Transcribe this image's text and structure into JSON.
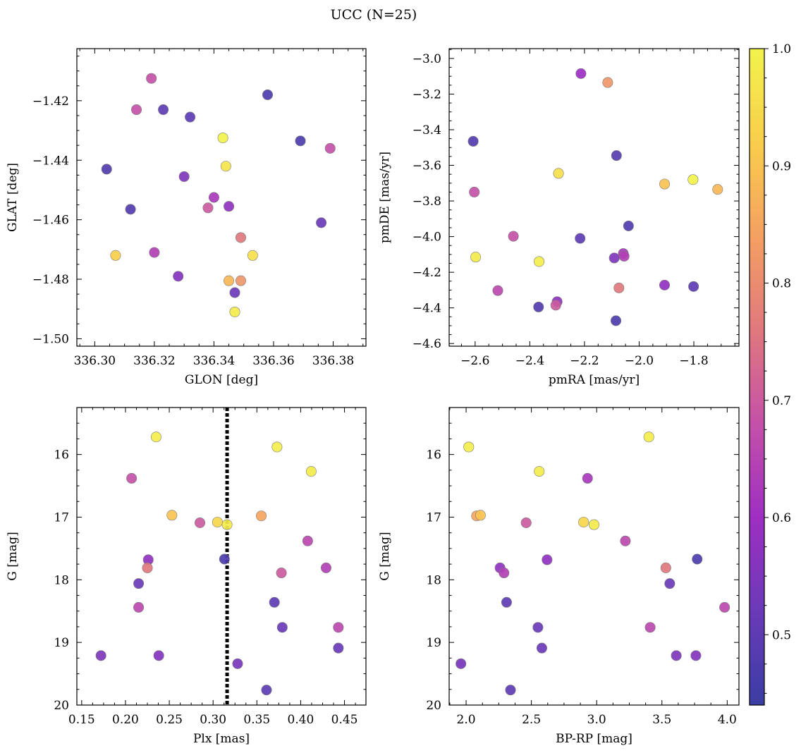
{
  "figure": {
    "title": "UCC (N=25)"
  },
  "colormap": {
    "name": "plasma",
    "range": [
      0.44,
      1.0
    ],
    "stops": [
      "#3a3ea3",
      "#6a3ab8",
      "#9e2fc2",
      "#c451a8",
      "#e0787e",
      "#f4a062",
      "#f9ce4c",
      "#f2f34c"
    ],
    "ticks": [
      "0.5",
      "0.6",
      "0.7",
      "0.8",
      "0.9",
      "1.0"
    ]
  },
  "chart_data": [
    {
      "type": "scatter",
      "xlabel": "GLON [deg]",
      "ylabel": "GLAT [deg]",
      "xlim": [
        336.294,
        336.391
      ],
      "ylim": [
        -1.5025,
        -1.4025
      ],
      "xticks": [
        "336.30",
        "336.32",
        "336.34",
        "336.36",
        "336.38"
      ],
      "yticks": [
        "−1.42",
        "−1.44",
        "−1.46",
        "−1.48",
        "−1.50"
      ],
      "points": [
        {
          "x": 336.319,
          "y": -1.4125,
          "c": 0.68
        },
        {
          "x": 336.358,
          "y": -1.418,
          "c": 0.47
        },
        {
          "x": 336.314,
          "y": -1.423,
          "c": 0.68
        },
        {
          "x": 336.323,
          "y": -1.423,
          "c": 0.5
        },
        {
          "x": 336.332,
          "y": -1.4255,
          "c": 0.5
        },
        {
          "x": 336.343,
          "y": -1.4325,
          "c": 1.0
        },
        {
          "x": 336.369,
          "y": -1.4335,
          "c": 0.47
        },
        {
          "x": 336.379,
          "y": -1.436,
          "c": 0.68
        },
        {
          "x": 336.344,
          "y": -1.442,
          "c": 0.97
        },
        {
          "x": 336.304,
          "y": -1.443,
          "c": 0.48
        },
        {
          "x": 336.33,
          "y": -1.4455,
          "c": 0.55
        },
        {
          "x": 336.34,
          "y": -1.4525,
          "c": 0.62
        },
        {
          "x": 336.345,
          "y": -1.4555,
          "c": 0.58
        },
        {
          "x": 336.338,
          "y": -1.456,
          "c": 0.7
        },
        {
          "x": 336.312,
          "y": -1.4565,
          "c": 0.48
        },
        {
          "x": 336.376,
          "y": -1.461,
          "c": 0.52
        },
        {
          "x": 336.349,
          "y": -1.466,
          "c": 0.76
        },
        {
          "x": 336.32,
          "y": -1.471,
          "c": 0.64
        },
        {
          "x": 336.307,
          "y": -1.472,
          "c": 0.92
        },
        {
          "x": 336.353,
          "y": -1.472,
          "c": 0.96
        },
        {
          "x": 336.328,
          "y": -1.479,
          "c": 0.56
        },
        {
          "x": 336.345,
          "y": -1.4805,
          "c": 0.88
        },
        {
          "x": 336.349,
          "y": -1.4805,
          "c": 0.82
        },
        {
          "x": 336.347,
          "y": -1.4845,
          "c": 0.52
        },
        {
          "x": 336.347,
          "y": -1.491,
          "c": 0.98
        }
      ]
    },
    {
      "type": "scatter",
      "xlabel": "pmRA [mas/yr]",
      "ylabel": "pmDE [mas/yr]",
      "xlim": [
        -2.695,
        -1.635
      ],
      "ylim": [
        -4.615,
        -2.945
      ],
      "xticks": [
        "−2.6",
        "−2.4",
        "−2.2",
        "−2.0",
        "−1.8"
      ],
      "yticks": [
        "−3.0",
        "−3.2",
        "−3.4",
        "−3.6",
        "−3.8",
        "−4.0",
        "−4.2",
        "−4.4",
        "−4.6"
      ],
      "points": [
        {
          "x": -2.213,
          "y": -3.085,
          "c": 0.6
        },
        {
          "x": -2.115,
          "y": -3.135,
          "c": 0.82
        },
        {
          "x": -2.607,
          "y": -3.465,
          "c": 0.48
        },
        {
          "x": -2.083,
          "y": -3.545,
          "c": 0.49
        },
        {
          "x": -2.295,
          "y": -3.645,
          "c": 0.96
        },
        {
          "x": -1.907,
          "y": -3.705,
          "c": 0.9
        },
        {
          "x": -1.803,
          "y": -3.68,
          "c": 1.0
        },
        {
          "x": -1.713,
          "y": -3.735,
          "c": 0.88
        },
        {
          "x": -2.603,
          "y": -3.75,
          "c": 0.68
        },
        {
          "x": -2.039,
          "y": -3.94,
          "c": 0.48
        },
        {
          "x": -2.46,
          "y": -3.998,
          "c": 0.68
        },
        {
          "x": -2.216,
          "y": -4.01,
          "c": 0.5
        },
        {
          "x": -2.058,
          "y": -4.095,
          "c": 0.62
        },
        {
          "x": -2.055,
          "y": -4.11,
          "c": 0.64
        },
        {
          "x": -2.091,
          "y": -4.12,
          "c": 0.55
        },
        {
          "x": -2.598,
          "y": -4.115,
          "c": 0.98
        },
        {
          "x": -2.366,
          "y": -4.14,
          "c": 0.99
        },
        {
          "x": -2.074,
          "y": -4.288,
          "c": 0.76
        },
        {
          "x": -1.907,
          "y": -4.272,
          "c": 0.58
        },
        {
          "x": -1.801,
          "y": -4.28,
          "c": 0.5
        },
        {
          "x": -2.517,
          "y": -4.303,
          "c": 0.66
        },
        {
          "x": -2.3,
          "y": -4.365,
          "c": 0.58
        },
        {
          "x": -2.305,
          "y": -4.385,
          "c": 0.7
        },
        {
          "x": -2.368,
          "y": -4.395,
          "c": 0.48
        },
        {
          "x": -2.085,
          "y": -4.472,
          "c": 0.47
        }
      ]
    },
    {
      "type": "scatter",
      "xlabel": "Plx [mas]",
      "ylabel": "G [mag]",
      "xlim": [
        0.1445,
        0.4745
      ],
      "ylim": [
        20.0,
        15.25
      ],
      "invert_y": true,
      "vline": 0.316,
      "xticks": [
        "0.15",
        "0.20",
        "0.25",
        "0.30",
        "0.35",
        "0.40",
        "0.45"
      ],
      "yticks": [
        "16",
        "17",
        "18",
        "19",
        "20"
      ],
      "points": [
        {
          "x": 0.235,
          "y": 15.72,
          "c": 0.99
        },
        {
          "x": 0.373,
          "y": 15.88,
          "c": 0.99
        },
        {
          "x": 0.412,
          "y": 16.27,
          "c": 0.98
        },
        {
          "x": 0.207,
          "y": 16.38,
          "c": 0.68
        },
        {
          "x": 0.253,
          "y": 16.97,
          "c": 0.9
        },
        {
          "x": 0.355,
          "y": 16.98,
          "c": 0.85
        },
        {
          "x": 0.285,
          "y": 17.09,
          "c": 0.7
        },
        {
          "x": 0.305,
          "y": 17.08,
          "c": 0.94
        },
        {
          "x": 0.316,
          "y": 17.12,
          "c": 0.98
        },
        {
          "x": 0.408,
          "y": 17.38,
          "c": 0.66
        },
        {
          "x": 0.226,
          "y": 17.68,
          "c": 0.58
        },
        {
          "x": 0.313,
          "y": 17.67,
          "c": 0.47
        },
        {
          "x": 0.225,
          "y": 17.81,
          "c": 0.76
        },
        {
          "x": 0.429,
          "y": 17.81,
          "c": 0.64
        },
        {
          "x": 0.378,
          "y": 17.89,
          "c": 0.7
        },
        {
          "x": 0.215,
          "y": 18.06,
          "c": 0.52
        },
        {
          "x": 0.37,
          "y": 18.36,
          "c": 0.5
        },
        {
          "x": 0.215,
          "y": 18.44,
          "c": 0.66
        },
        {
          "x": 0.379,
          "y": 18.76,
          "c": 0.52
        },
        {
          "x": 0.443,
          "y": 18.76,
          "c": 0.66
        },
        {
          "x": 0.443,
          "y": 19.09,
          "c": 0.52
        },
        {
          "x": 0.172,
          "y": 19.21,
          "c": 0.55
        },
        {
          "x": 0.238,
          "y": 19.21,
          "c": 0.56
        },
        {
          "x": 0.328,
          "y": 19.34,
          "c": 0.54
        },
        {
          "x": 0.361,
          "y": 19.76,
          "c": 0.5
        }
      ]
    },
    {
      "type": "scatter",
      "xlabel": "BP-RP [mag]",
      "ylabel": "G [mag]",
      "xlim": [
        1.87,
        4.09
      ],
      "ylim": [
        20.0,
        15.25
      ],
      "invert_y": true,
      "xticks": [
        "2.0",
        "2.5",
        "3.0",
        "3.5",
        "4.0"
      ],
      "yticks": [
        "16",
        "17",
        "18",
        "19",
        "20"
      ],
      "points": [
        {
          "x": 3.4,
          "y": 15.72,
          "c": 0.99
        },
        {
          "x": 2.02,
          "y": 15.88,
          "c": 0.99
        },
        {
          "x": 2.56,
          "y": 16.27,
          "c": 0.98
        },
        {
          "x": 2.93,
          "y": 16.38,
          "c": 0.62
        },
        {
          "x": 2.08,
          "y": 16.98,
          "c": 0.85
        },
        {
          "x": 2.11,
          "y": 16.97,
          "c": 0.9
        },
        {
          "x": 2.46,
          "y": 17.09,
          "c": 0.7
        },
        {
          "x": 2.9,
          "y": 17.08,
          "c": 0.94
        },
        {
          "x": 2.98,
          "y": 17.12,
          "c": 0.98
        },
        {
          "x": 3.22,
          "y": 17.38,
          "c": 0.66
        },
        {
          "x": 2.62,
          "y": 17.68,
          "c": 0.58
        },
        {
          "x": 3.77,
          "y": 17.67,
          "c": 0.47
        },
        {
          "x": 2.26,
          "y": 17.81,
          "c": 0.58
        },
        {
          "x": 3.53,
          "y": 17.81,
          "c": 0.76
        },
        {
          "x": 2.29,
          "y": 17.89,
          "c": 0.64
        },
        {
          "x": 3.56,
          "y": 18.06,
          "c": 0.52
        },
        {
          "x": 2.31,
          "y": 18.36,
          "c": 0.5
        },
        {
          "x": 3.98,
          "y": 18.44,
          "c": 0.66
        },
        {
          "x": 2.55,
          "y": 18.76,
          "c": 0.52
        },
        {
          "x": 3.41,
          "y": 18.76,
          "c": 0.66
        },
        {
          "x": 2.58,
          "y": 19.09,
          "c": 0.52
        },
        {
          "x": 3.61,
          "y": 19.21,
          "c": 0.55
        },
        {
          "x": 3.76,
          "y": 19.21,
          "c": 0.56
        },
        {
          "x": 1.96,
          "y": 19.34,
          "c": 0.54
        },
        {
          "x": 2.34,
          "y": 19.76,
          "c": 0.5
        }
      ]
    }
  ]
}
